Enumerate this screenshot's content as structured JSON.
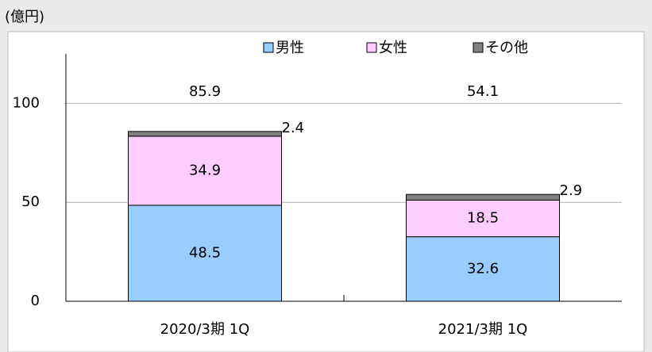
{
  "chart_data": {
    "type": "stacked_bar",
    "y_label": "(億円)",
    "categories": [
      "2020/3期 1Q",
      "2021/3期 1Q"
    ],
    "series": [
      {
        "name": "男性",
        "color": "#99ccff",
        "values": [
          48.5,
          32.6
        ]
      },
      {
        "name": "女性",
        "color": "#ffccff",
        "values": [
          34.9,
          18.5
        ]
      },
      {
        "name": "その他",
        "color": "#808080",
        "values": [
          2.4,
          2.9
        ]
      }
    ],
    "totals": [
      85.9,
      54.1
    ],
    "ylim": [
      0,
      125
    ],
    "yticks": [
      0,
      50,
      100
    ],
    "grid": true
  }
}
